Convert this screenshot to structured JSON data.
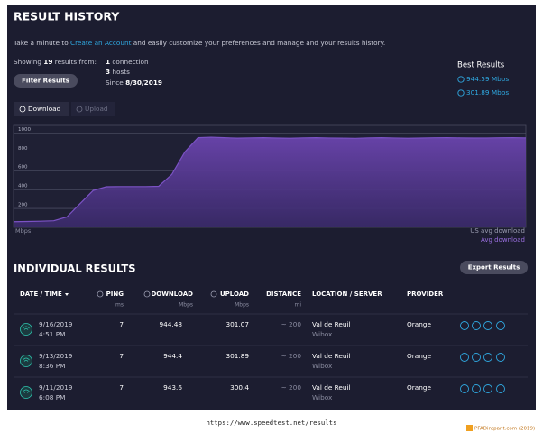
{
  "header": {
    "title": "RESULT HISTORY",
    "intro_before": "Take a minute to ",
    "intro_link": "Create an Account",
    "intro_after": " and easily customize your preferences and manage and your results history."
  },
  "summary": {
    "showing_before": "Showing ",
    "count": 19,
    "showing_after": " results from:",
    "connections": 1,
    "connections_label": " connection",
    "hosts": 3,
    "hosts_label": " hosts",
    "since_label": "Since ",
    "since": "8/30/2019",
    "filter_button": "Filter Results"
  },
  "best": {
    "title": "Best Results",
    "download": "944.59 Mbps",
    "upload": "301.89 Mbps"
  },
  "tabs": [
    "Download",
    "Upload"
  ],
  "chart": {
    "type": "area",
    "unit": "Mbps",
    "ylim": [
      0,
      1080
    ],
    "yticks": [
      200,
      400,
      600,
      800,
      1000
    ],
    "values": [
      60,
      62,
      65,
      70,
      110,
      250,
      390,
      430,
      432,
      432,
      432,
      435,
      560,
      800,
      950,
      955,
      950,
      945,
      948,
      950,
      946,
      944,
      948,
      950,
      947,
      945,
      943,
      948,
      950,
      947,
      944,
      946,
      949,
      950,
      948,
      946,
      947,
      949,
      950,
      948
    ],
    "color": "#7b52c4",
    "legend": [
      "US avg download",
      "Avg download"
    ]
  },
  "individual": {
    "title": "INDIVIDUAL RESULTS",
    "export_button": "Export Results",
    "columns": [
      {
        "label": "DATE / TIME"
      },
      {
        "label": "PING",
        "unit": "ms"
      },
      {
        "label": "DOWNLOAD",
        "unit": "Mbps"
      },
      {
        "label": "UPLOAD",
        "unit": "Mbps"
      },
      {
        "label": "DISTANCE",
        "unit": "mi"
      },
      {
        "label": "LOCATION / SERVER"
      },
      {
        "label": "PROVIDER"
      }
    ],
    "rows": [
      {
        "date": "9/16/2019",
        "time": "4:51 PM",
        "ping": 7,
        "download": 944.48,
        "upload": 301.07,
        "distance": "~ 200",
        "location": "Val de Reuil",
        "server": "Wibox",
        "provider": "Orange"
      },
      {
        "date": "9/13/2019",
        "time": "8:36 PM",
        "ping": 7,
        "download": 944.4,
        "upload": 301.89,
        "distance": "~ 200",
        "location": "Val de Reuil",
        "server": "Wibox",
        "provider": "Orange"
      },
      {
        "date": "9/11/2019",
        "time": "6:08 PM",
        "ping": 7,
        "download": 943.6,
        "upload": 300.4,
        "distance": "~ 200",
        "location": "Val de Reuil",
        "server": "Wibox",
        "provider": "Orange"
      }
    ]
  },
  "footer": {
    "url": "https://www.speedtest.net/results",
    "watermark": "PFADintpant.com (2019)"
  }
}
